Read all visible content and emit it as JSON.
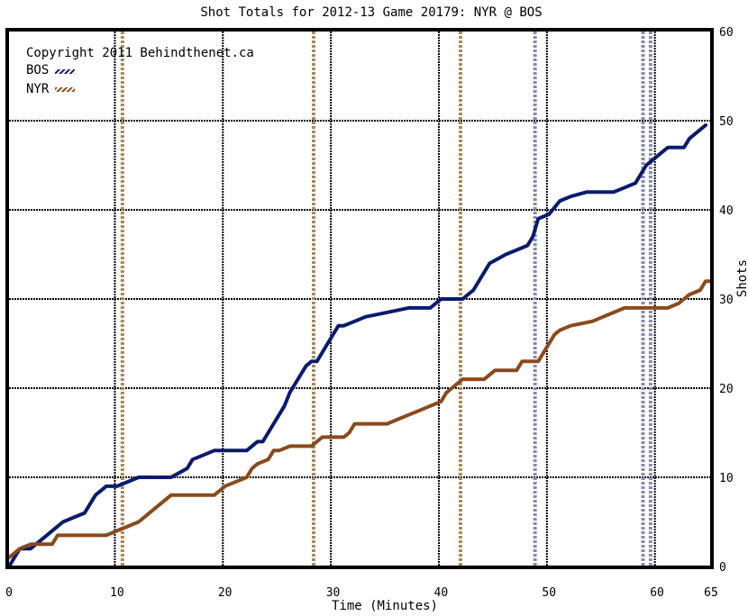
{
  "colors": {
    "bos": "#0a1a6e",
    "nyr": "#8a4a1c",
    "penalty_bos": "#8a8aaa",
    "penalty_nyr": "#a88a5c",
    "grid": "#000000",
    "background": "#ffffff"
  },
  "chart_data": {
    "type": "line",
    "title": "Shot Totals for 2012-13 Game 20179: NYR @ BOS",
    "xlabel": "Time (Minutes)",
    "ylabel": "Shots",
    "copyright": "Copyright 2011 Behindthenet.ca",
    "xlim": [
      0,
      65
    ],
    "ylim": [
      0,
      60
    ],
    "x_ticks": [
      0,
      10,
      20,
      30,
      40,
      50,
      60,
      65
    ],
    "y_ticks": [
      0,
      10,
      20,
      30,
      40,
      50,
      60
    ],
    "y_axis_side": "right",
    "grid": true,
    "legend_position": "top-left",
    "series": [
      {
        "name": "BOS",
        "color": "#0a1a6e",
        "points": [
          [
            0,
            0
          ],
          [
            0.5,
            1
          ],
          [
            1,
            2
          ],
          [
            2,
            2
          ],
          [
            3,
            3
          ],
          [
            4,
            4
          ],
          [
            5,
            5
          ],
          [
            6,
            5.5
          ],
          [
            7,
            6
          ],
          [
            7.5,
            7
          ],
          [
            8,
            8
          ],
          [
            9,
            9
          ],
          [
            10,
            9
          ],
          [
            11,
            9.5
          ],
          [
            12,
            10
          ],
          [
            15,
            10
          ],
          [
            16.5,
            11
          ],
          [
            17,
            12
          ],
          [
            18,
            12.5
          ],
          [
            19,
            13
          ],
          [
            22,
            13
          ],
          [
            23,
            14
          ],
          [
            23.5,
            14
          ],
          [
            24,
            15
          ],
          [
            24.5,
            16
          ],
          [
            25,
            17
          ],
          [
            25.5,
            18
          ],
          [
            26,
            19.5
          ],
          [
            26.5,
            20.5
          ],
          [
            27,
            21.5
          ],
          [
            27.5,
            22.5
          ],
          [
            28,
            23
          ],
          [
            28.5,
            23
          ],
          [
            29,
            24
          ],
          [
            29.5,
            25
          ],
          [
            30,
            26
          ],
          [
            30.5,
            27
          ],
          [
            31,
            27
          ],
          [
            32,
            27.5
          ],
          [
            33,
            28
          ],
          [
            35,
            28.5
          ],
          [
            37,
            29
          ],
          [
            38,
            29
          ],
          [
            39,
            29
          ],
          [
            40,
            30
          ],
          [
            42,
            30
          ],
          [
            43,
            31
          ],
          [
            44,
            33
          ],
          [
            44.5,
            34
          ],
          [
            46,
            35
          ],
          [
            47,
            35.5
          ],
          [
            48,
            36
          ],
          [
            48.5,
            37
          ],
          [
            49,
            39
          ],
          [
            50,
            39.5
          ],
          [
            51,
            41
          ],
          [
            52,
            41.5
          ],
          [
            53.5,
            42
          ],
          [
            56,
            42
          ],
          [
            57,
            42.5
          ],
          [
            58,
            43
          ],
          [
            58.5,
            44
          ],
          [
            59,
            45
          ],
          [
            60,
            46
          ],
          [
            61,
            47
          ],
          [
            62.5,
            47
          ],
          [
            63,
            48
          ],
          [
            64,
            49
          ],
          [
            64.5,
            49.5
          ]
        ]
      },
      {
        "name": "NYR",
        "color": "#8a4a1c",
        "points": [
          [
            0,
            1
          ],
          [
            0.5,
            1.5
          ],
          [
            1,
            2
          ],
          [
            2,
            2.5
          ],
          [
            4,
            2.5
          ],
          [
            4.5,
            3.5
          ],
          [
            5,
            3.5
          ],
          [
            9,
            3.5
          ],
          [
            10,
            4
          ],
          [
            11,
            4.5
          ],
          [
            12,
            5
          ],
          [
            13,
            6
          ],
          [
            14,
            7
          ],
          [
            15,
            8
          ],
          [
            19,
            8
          ],
          [
            20,
            9
          ],
          [
            22,
            10
          ],
          [
            22.5,
            11
          ],
          [
            23,
            11.5
          ],
          [
            24,
            12
          ],
          [
            24.5,
            13
          ],
          [
            25,
            13
          ],
          [
            26,
            13.5
          ],
          [
            28,
            13.5
          ],
          [
            28.5,
            14
          ],
          [
            29,
            14.5
          ],
          [
            31,
            14.5
          ],
          [
            31.5,
            15
          ],
          [
            32,
            16
          ],
          [
            35,
            16
          ],
          [
            36,
            16.5
          ],
          [
            37,
            17
          ],
          [
            38,
            17.5
          ],
          [
            39,
            18
          ],
          [
            40,
            18.5
          ],
          [
            40.5,
            19.5
          ],
          [
            41,
            20
          ],
          [
            42,
            21
          ],
          [
            44,
            21
          ],
          [
            45,
            22
          ],
          [
            47,
            22
          ],
          [
            47.5,
            23
          ],
          [
            49,
            23
          ],
          [
            49.5,
            24
          ],
          [
            50,
            25
          ],
          [
            50.5,
            26
          ],
          [
            51,
            26.5
          ],
          [
            52,
            27
          ],
          [
            54,
            27.5
          ],
          [
            55,
            28
          ],
          [
            56,
            28.5
          ],
          [
            57,
            29
          ],
          [
            61,
            29
          ],
          [
            62,
            29.5
          ],
          [
            62.5,
            30
          ],
          [
            63,
            30.5
          ],
          [
            64,
            31
          ],
          [
            64.5,
            32
          ],
          [
            65,
            32
          ]
        ]
      }
    ],
    "goal_lines": [
      9.8,
      19.8,
      29.8,
      39.8,
      49.8,
      59.8
    ],
    "penalty_markers": [
      {
        "team": "NYR",
        "x": 10.5
      },
      {
        "team": "NYR",
        "x": 28.2
      },
      {
        "team": "NYR",
        "x": 41.8
      },
      {
        "team": "BOS",
        "x": 48.7
      },
      {
        "team": "BOS",
        "x": 58.7
      },
      {
        "team": "BOS",
        "x": 59.4
      }
    ]
  }
}
